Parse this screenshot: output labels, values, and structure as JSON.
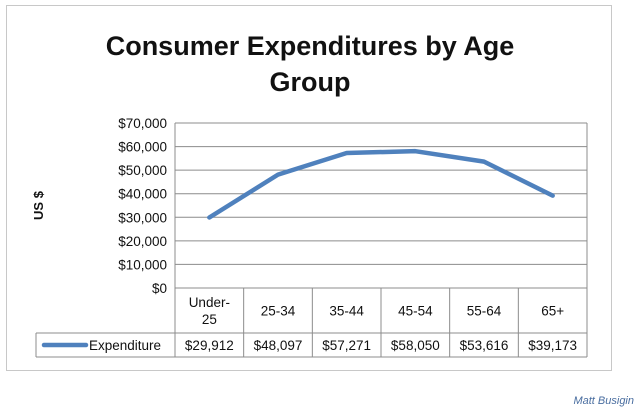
{
  "chart_data": {
    "type": "line",
    "title_lines": [
      "Consumer Expenditures by Age",
      "Group"
    ],
    "ylabel": "US $",
    "xlabel": "",
    "categories": [
      "Under-25",
      "25-34",
      "35-44",
      "45-54",
      "55-64",
      "65+"
    ],
    "category_lines": [
      [
        "Under-",
        "25"
      ],
      [
        "25-34"
      ],
      [
        "35-44"
      ],
      [
        "45-54"
      ],
      [
        "55-64"
      ],
      [
        "65+"
      ]
    ],
    "series": [
      {
        "name": "Expenditure",
        "values": [
          29912,
          48097,
          57271,
          58050,
          53616,
          39173
        ],
        "value_labels": [
          "$29,912",
          "$48,097",
          "$57,271",
          "$58,050",
          "$53,616",
          "$39,173"
        ],
        "color": "#4f81bd"
      }
    ],
    "ylim": [
      0,
      70000
    ],
    "yticks": [
      0,
      10000,
      20000,
      30000,
      40000,
      50000,
      60000,
      70000
    ],
    "ytick_labels": [
      "$0",
      "$10,000",
      "$20,000",
      "$30,000",
      "$40,000",
      "$50,000",
      "$60,000",
      "$70,000"
    ],
    "grid": true,
    "legend": "data-table",
    "line_color": "#4f81bd",
    "grid_color": "#8c8c8c"
  },
  "credit": "Matt Busigin"
}
